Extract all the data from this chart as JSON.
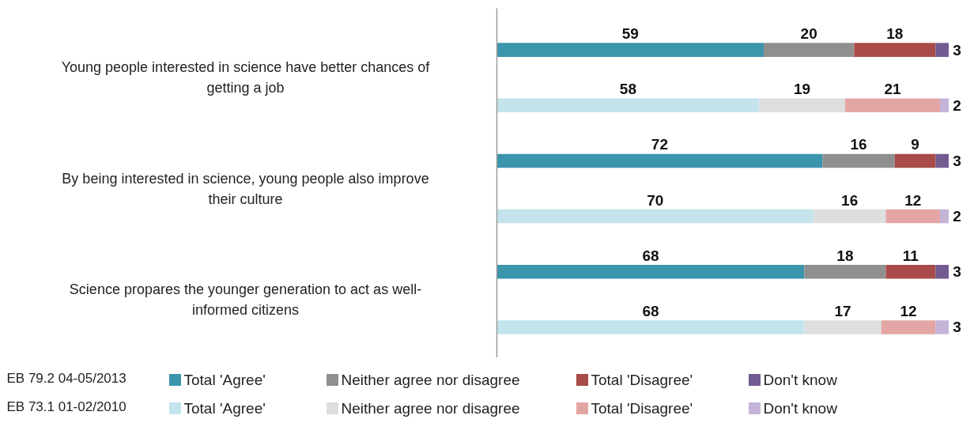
{
  "chart_data": {
    "type": "bar",
    "orientation": "horizontal",
    "stacked": true,
    "data_labels": true,
    "grid": false,
    "tick_labels": "y",
    "legend": "bottom",
    "xlim": [
      0,
      100
    ],
    "categories": [
      "Young people interested in science have better chances of getting a job",
      null,
      "By being interested in science, young people also improve their culture",
      null,
      "Science propares the younger generation to act as well-informed citizens",
      null
    ],
    "annotations": [
      "EB 79.2 04-05/2013",
      "EB 73.1 01-02/2010"
    ],
    "series": [
      {
        "name": "Total 'Agree'",
        "color": "#3b95ad",
        "values": [
          59,
          null,
          72,
          null,
          68,
          null
        ]
      },
      {
        "name": "Neither agree nor disagree",
        "color": "#8f8f8f",
        "values": [
          20,
          null,
          16,
          null,
          18,
          null
        ]
      },
      {
        "name": "Total 'Disagree'",
        "color": "#a94b48",
        "values": [
          18,
          null,
          9,
          null,
          11,
          null
        ]
      },
      {
        "name": "Don't know",
        "color": "#735b92",
        "values": [
          3,
          null,
          3,
          null,
          3,
          null
        ]
      },
      {
        "name": "Total 'Agree'",
        "color": "#c3e4ec",
        "values": [
          null,
          58,
          null,
          70,
          null,
          68
        ]
      },
      {
        "name": "Neither agree nor disagree",
        "color": "#dedede",
        "values": [
          null,
          19,
          null,
          16,
          null,
          17
        ]
      },
      {
        "name": "Total 'Disagree'",
        "color": "#e3a6a4",
        "values": [
          null,
          21,
          null,
          12,
          null,
          12
        ]
      },
      {
        "name": "Don't know",
        "color": "#c4b4d8",
        "values": [
          null,
          2,
          null,
          2,
          null,
          3
        ]
      }
    ]
  }
}
